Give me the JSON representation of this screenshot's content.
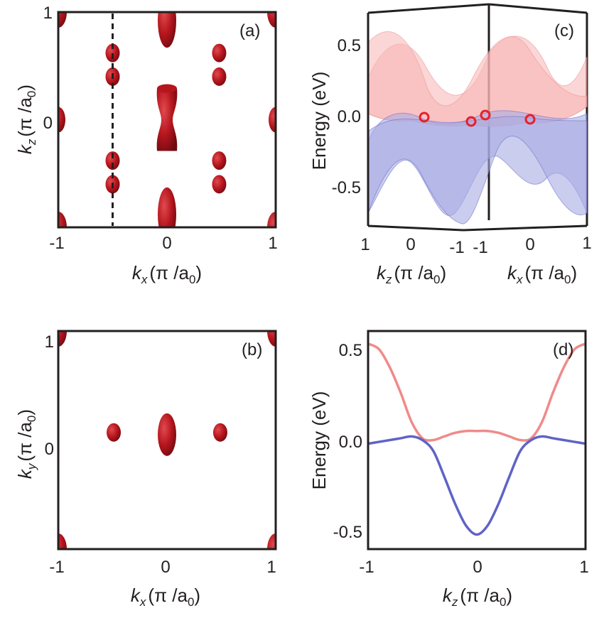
{
  "colors": {
    "frame": "#231f20",
    "surface_dark": "#8e0f15",
    "surface_mid": "#b5151d",
    "surface_light": "#e04a4f",
    "conduction": "#f08a8a",
    "valence": "#5f63c6",
    "conduction_fill": "#f7b4b4",
    "valence_fill": "#a9abe3",
    "weyl_point": "#e8202a"
  },
  "panel_a": {
    "label": "(a)",
    "x_ticks": [
      "-1",
      "0",
      "1"
    ],
    "y_ticks": [
      "1",
      "0"
    ],
    "xlabel_var": "k",
    "xlabel_sub": "x",
    "ylabel_var": "k",
    "ylabel_sub": "z",
    "unit_pre": "(π /a",
    "unit_sub": "0",
    "unit_post": ")",
    "dashed_line_kx": -0.5
  },
  "panel_b": {
    "label": "(b)",
    "x_ticks": [
      "-1",
      "0",
      "1"
    ],
    "y_ticks": [
      "1",
      "0"
    ],
    "xlabel_var": "k",
    "xlabel_sub": "x",
    "ylabel_var": "k",
    "ylabel_sub": "y",
    "unit_pre": "(π /a",
    "unit_sub": "0",
    "unit_post": ")"
  },
  "panel_c": {
    "label": "(c)",
    "ylabel": "Energy (eV)",
    "y_ticks": [
      "0.5",
      "0.0",
      "-0.5"
    ],
    "kz_ticks": [
      "1",
      "0",
      "-1"
    ],
    "kx_ticks": [
      "-1",
      "0",
      "1"
    ],
    "kz_label_var": "k",
    "kz_label_sub": "z",
    "kx_label_var": "k",
    "kx_label_sub": "x",
    "unit_pre": "(π /a",
    "unit_sub": "0",
    "unit_post": ")"
  },
  "panel_d": {
    "label": "(d)",
    "ylabel": "Energy (eV)",
    "x_ticks": [
      "-1",
      "0",
      "1"
    ],
    "y_ticks": [
      "0.5",
      "0.0",
      "-0.5"
    ],
    "xlabel_var": "k",
    "xlabel_sub": "z",
    "unit_pre": "(π /a",
    "unit_sub": "0",
    "unit_post": ")"
  },
  "chart_data": [
    {
      "panel": "(a)",
      "type": "isosurface-projection",
      "x_range": [
        -1,
        1
      ],
      "y_range": [
        -1,
        1
      ],
      "pockets": [
        {
          "kx": 0.0,
          "kz": 0.0,
          "shape": "elongated"
        },
        {
          "kx": 0.0,
          "kz": 0.92,
          "shape": "elongated"
        },
        {
          "kx": 0.0,
          "kz": -0.88,
          "shape": "elongated"
        },
        {
          "kx": -0.5,
          "kz": 0.62,
          "shape": "small"
        },
        {
          "kx": -0.5,
          "kz": 0.4,
          "shape": "small"
        },
        {
          "kx": -0.5,
          "kz": -0.38,
          "shape": "small"
        },
        {
          "kx": -0.5,
          "kz": -0.6,
          "shape": "small"
        },
        {
          "kx": 0.48,
          "kz": 0.62,
          "shape": "small"
        },
        {
          "kx": 0.48,
          "kz": 0.4,
          "shape": "small"
        },
        {
          "kx": 0.48,
          "kz": -0.38,
          "shape": "small"
        },
        {
          "kx": 0.48,
          "kz": -0.6,
          "shape": "small"
        },
        {
          "kx": -1.0,
          "kz": 0.0,
          "shape": "edge"
        },
        {
          "kx": 1.0,
          "kz": 0.0,
          "shape": "edge"
        },
        {
          "kx": -1.0,
          "kz": 1.0,
          "shape": "corner"
        },
        {
          "kx": 1.0,
          "kz": 1.0,
          "shape": "corner"
        },
        {
          "kx": -1.0,
          "kz": -1.0,
          "shape": "corner"
        },
        {
          "kx": 1.0,
          "kz": -1.0,
          "shape": "corner"
        }
      ]
    },
    {
      "panel": "(b)",
      "type": "isosurface-projection",
      "x_range": [
        -1,
        1
      ],
      "y_range": [
        -1,
        1
      ],
      "pockets": [
        {
          "kx": 0.0,
          "ky": 0.05,
          "shape": "elongated"
        },
        {
          "kx": -0.49,
          "ky": 0.07,
          "shape": "small"
        },
        {
          "kx": 0.49,
          "ky": 0.07,
          "shape": "small"
        },
        {
          "kx": -1.0,
          "ky": 1.0,
          "shape": "corner"
        },
        {
          "kx": 1.0,
          "ky": 1.0,
          "shape": "corner"
        },
        {
          "kx": -1.0,
          "ky": -1.0,
          "shape": "corner"
        },
        {
          "kx": 1.0,
          "ky": -1.0,
          "shape": "corner"
        }
      ]
    },
    {
      "panel": "(c)",
      "type": "surface",
      "z_range": [
        -0.75,
        0.75
      ],
      "weyl_points_energy": [
        0.0,
        0.0,
        0.0,
        0.0
      ]
    },
    {
      "panel": "(d)",
      "type": "line",
      "xlim": [
        -1,
        1
      ],
      "ylim": [
        -0.6,
        0.6
      ],
      "x": [
        -1.0,
        -0.9,
        -0.8,
        -0.7,
        -0.6,
        -0.5,
        -0.4,
        -0.3,
        -0.2,
        -0.1,
        0.0,
        0.1,
        0.2,
        0.3,
        0.4,
        0.5,
        0.6,
        0.7,
        0.8,
        0.9,
        1.0
      ],
      "series": [
        {
          "values": [
            0.53,
            0.5,
            0.4,
            0.26,
            0.1,
            0.01,
            0.0,
            0.02,
            0.04,
            0.05,
            0.05,
            0.05,
            0.04,
            0.02,
            0.0,
            0.01,
            0.1,
            0.26,
            0.4,
            0.5,
            0.53
          ]
        },
        {
          "values": [
            -0.02,
            -0.01,
            0.0,
            0.01,
            0.02,
            0.0,
            -0.06,
            -0.2,
            -0.35,
            -0.47,
            -0.52,
            -0.47,
            -0.35,
            -0.2,
            -0.06,
            0.0,
            0.02,
            0.01,
            0.0,
            -0.01,
            -0.02
          ]
        }
      ]
    }
  ]
}
